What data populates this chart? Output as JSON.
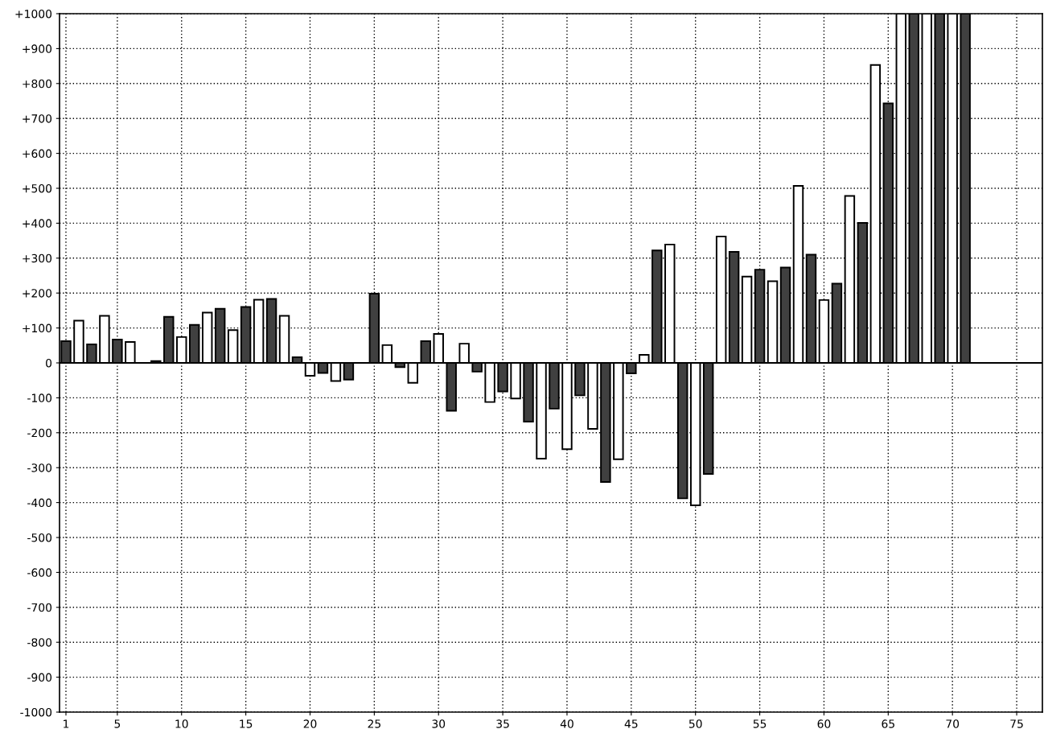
{
  "chart_data": {
    "type": "bar",
    "x": [
      1,
      2,
      3,
      4,
      5,
      6,
      7,
      8,
      9,
      10,
      11,
      12,
      13,
      14,
      15,
      16,
      17,
      18,
      19,
      20,
      21,
      22,
      23,
      24,
      25,
      26,
      27,
      28,
      29,
      30,
      31,
      32,
      33,
      34,
      35,
      36,
      37,
      38,
      39,
      40,
      41,
      42,
      43,
      44,
      45,
      46,
      47,
      48,
      49,
      50,
      51,
      52,
      53,
      54,
      55,
      56,
      57,
      58,
      59,
      60,
      61,
      62,
      63,
      64,
      65,
      66,
      67,
      68,
      69,
      70,
      71
    ],
    "values": [
      62,
      121,
      53,
      135,
      67,
      60,
      0,
      5,
      132,
      74,
      109,
      144,
      155,
      94,
      160,
      181,
      183,
      135,
      16,
      -37,
      -29,
      -52,
      -48,
      null,
      198,
      51,
      -12,
      -57,
      62,
      83,
      -137,
      55,
      -25,
      -112,
      -82,
      -102,
      -168,
      -274,
      -131,
      -247,
      -93,
      -189,
      -341,
      -276,
      -30,
      23,
      322,
      339,
      -388,
      -408,
      -318,
      362,
      318,
      247,
      267,
      234,
      273,
      507,
      310,
      180,
      227,
      478,
      401,
      853,
      743,
      1000,
      1000,
      1000,
      1000,
      1000,
      1000
    ],
    "colors": [
      "#404040",
      "#ffffff",
      "#404040",
      "#ffffff",
      "#404040",
      "#ffffff",
      "#404040",
      "#404040",
      "#404040",
      "#ffffff",
      "#404040",
      "#ffffff",
      "#404040",
      "#ffffff",
      "#404040",
      "#ffffff",
      "#404040",
      "#ffffff",
      "#404040",
      "#ffffff",
      "#404040",
      "#ffffff",
      "#404040",
      "#404040",
      "#404040",
      "#ffffff",
      "#404040",
      "#ffffff",
      "#404040",
      "#ffffff",
      "#404040",
      "#ffffff",
      "#404040",
      "#ffffff",
      "#404040",
      "#ffffff",
      "#404040",
      "#ffffff",
      "#404040",
      "#ffffff",
      "#404040",
      "#ffffff",
      "#404040",
      "#ffffff",
      "#404040",
      "#ffffff",
      "#404040",
      "#ffffff",
      "#404040",
      "#ffffff",
      "#404040",
      "#ffffff",
      "#404040",
      "#ffffff",
      "#404040",
      "#ffffff",
      "#404040",
      "#ffffff",
      "#404040",
      "#ffffff",
      "#404040",
      "#ffffff",
      "#404040",
      "#ffffff",
      "#404040",
      "#ffffff",
      "#404040",
      "#ffffff",
      "#404040",
      "#ffffff",
      "#404040"
    ],
    "xlim": [
      0.5,
      77
    ],
    "xticks": [
      1,
      5,
      10,
      15,
      20,
      25,
      30,
      35,
      40,
      45,
      50,
      55,
      60,
      65,
      70,
      75
    ],
    "ylim": [
      -1000,
      1000
    ],
    "yticks": [
      {
        "value": -1000,
        "label": "-1000"
      },
      {
        "value": -900,
        "label": "-900"
      },
      {
        "value": -800,
        "label": "-800"
      },
      {
        "value": -700,
        "label": "-700"
      },
      {
        "value": -600,
        "label": "-600"
      },
      {
        "value": -500,
        "label": "-500"
      },
      {
        "value": -400,
        "label": "-400"
      },
      {
        "value": -300,
        "label": "-300"
      },
      {
        "value": -200,
        "label": "-200"
      },
      {
        "value": -100,
        "label": "-100"
      },
      0,
      {
        "value": 100,
        "label": "+100"
      },
      {
        "value": 200,
        "label": "+200"
      },
      {
        "value": 300,
        "label": "+300"
      },
      {
        "value": 400,
        "label": "+400"
      },
      {
        "value": 500,
        "label": "+500"
      },
      {
        "value": 600,
        "label": "+600"
      },
      {
        "value": 700,
        "label": "+700"
      },
      {
        "value": 800,
        "label": "+800"
      },
      {
        "value": 900,
        "label": "+900"
      },
      {
        "value": 1000,
        "label": "+1000"
      }
    ],
    "grid": true
  }
}
